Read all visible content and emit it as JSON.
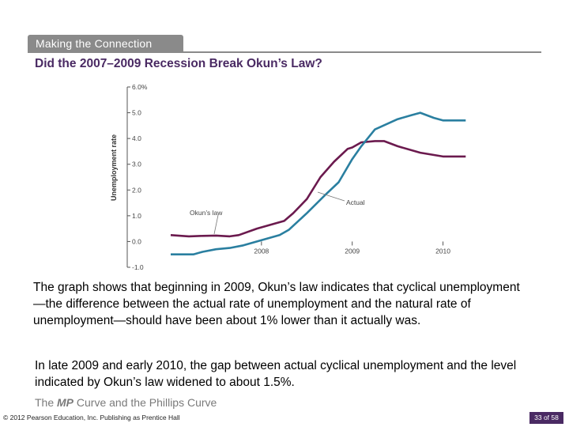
{
  "header": {
    "tag_label": "Making the Connection",
    "title": "Did the 2007–2009 Recession Break Okun’s Law?"
  },
  "chart_data": {
    "type": "line",
    "ylabel": "Unemployment rate",
    "ylim": [
      -1.0,
      6.0
    ],
    "yticks": [
      "6.0%",
      "5.0",
      "4.0",
      "3.0",
      "2.0",
      "1.0",
      "0.0",
      "-1.0"
    ],
    "ytick_values": [
      6,
      5,
      4,
      3,
      2,
      1,
      0,
      -1
    ],
    "xlim": [
      2007.0,
      2010.3
    ],
    "xticks": [
      "2008",
      "2009",
      "2010"
    ],
    "xtick_values": [
      2008,
      2009,
      2010
    ],
    "grid": false,
    "series": [
      {
        "name": "Okun's law",
        "color": "#6b1a4e",
        "x": [
          2007.0,
          2007.2,
          2007.35,
          2007.5,
          2007.65,
          2007.75,
          2007.95,
          2008.1,
          2008.25,
          2008.35,
          2008.5,
          2008.65,
          2008.8,
          2008.95,
          2009.0,
          2009.1,
          2009.25,
          2009.35,
          2009.5,
          2009.75,
          2010.0,
          2010.25
        ],
        "values": [
          0.25,
          0.2,
          0.22,
          0.23,
          0.2,
          0.25,
          0.5,
          0.65,
          0.8,
          1.1,
          1.65,
          2.5,
          3.1,
          3.6,
          3.65,
          3.85,
          3.9,
          3.9,
          3.7,
          3.45,
          3.3,
          3.3
        ]
      },
      {
        "name": "Actual",
        "color": "#2a7fa0",
        "x": [
          2007.0,
          2007.25,
          2007.35,
          2007.5,
          2007.65,
          2007.8,
          2008.0,
          2008.2,
          2008.3,
          2008.5,
          2008.7,
          2008.85,
          2009.0,
          2009.1,
          2009.25,
          2009.5,
          2009.65,
          2009.75,
          2009.9,
          2010.0,
          2010.25
        ],
        "values": [
          -0.5,
          -0.5,
          -0.4,
          -0.3,
          -0.25,
          -0.15,
          0.05,
          0.25,
          0.45,
          1.1,
          1.8,
          2.3,
          3.2,
          3.7,
          4.35,
          4.75,
          4.9,
          5.0,
          4.8,
          4.7,
          4.7
        ]
      }
    ],
    "annotations": [
      {
        "text": "Okun’s law",
        "series": "Okun's law"
      },
      {
        "text": "Actual",
        "series": "Actual"
      }
    ]
  },
  "body": {
    "paragraph1": "The graph shows that beginning in 2009, Okun’s law indicates that cyclical unemployment—the difference between the actual rate of unemployment and the natural rate of unemployment—should have been about 1% lower than it actually was.",
    "paragraph2": "In late 2009 and early 2010, the gap between actual cyclical unemployment and the level indicated by Okun’s law widened to about 1.5%."
  },
  "subtitle": {
    "prefix": "The ",
    "emph": "MP",
    "suffix": " Curve and the Phillips Curve"
  },
  "footer": {
    "copyright": "© 2012 Pearson Education, Inc. Publishing as Prentice Hall",
    "page": "33 of 58"
  },
  "colors": {
    "accent": "#4a2a63",
    "okun": "#6b1a4e",
    "actual": "#2a7fa0"
  }
}
